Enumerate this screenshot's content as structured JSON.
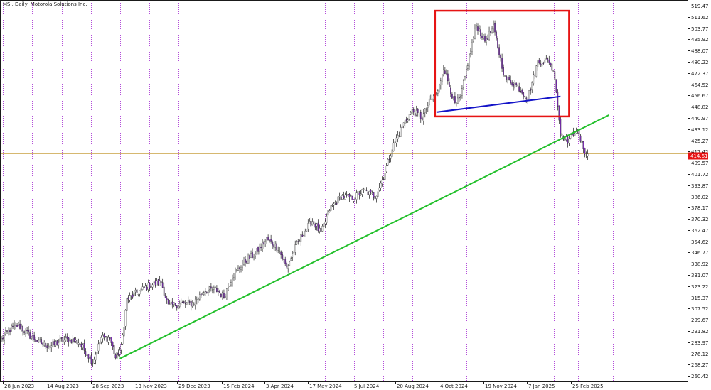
{
  "chart_title": "MSI, Daily:  Motorola Solutions Inc.",
  "colors": {
    "background": "#ffffff",
    "grid_vertical": "#b34dd9",
    "candle": "#1a1a1a",
    "bull_fill": "#ffffff",
    "bear_fill": "#7a2fb0",
    "trendline_support": "#22c02b",
    "trendline_neckline": "#1313c8",
    "highlight_box": "#e61414",
    "current_price_line": "#e8b84a",
    "current_price_tag": "#e61414",
    "bid_line": "#c8a040"
  },
  "chart_data": {
    "type": "candlestick",
    "symbol": "MSI",
    "timeframe": "Daily",
    "ylim": [
      256.5,
      523.0
    ],
    "y_ticks": [
      "519.47",
      "511.62",
      "503.77",
      "495.92",
      "488.07",
      "480.22",
      "472.37",
      "464.52",
      "456.67",
      "448.82",
      "440.97",
      "433.12",
      "425.27",
      "417.42",
      "409.57",
      "401.72",
      "393.87",
      "386.02",
      "378.17",
      "370.32",
      "362.47",
      "354.62",
      "346.77",
      "338.92",
      "331.07",
      "323.22",
      "315.37",
      "307.52",
      "299.67",
      "291.82",
      "283.97",
      "276.12",
      "268.27",
      "260.42"
    ],
    "x_labels": [
      "28 Jun 2023",
      "14 Aug 2023",
      "28 Sep 2023",
      "13 Nov 2023",
      "29 Dec 2023",
      "15 Feb 2024",
      "3 Apr 2024",
      "17 May 2024",
      "5 Jul 2024",
      "20 Aug 2024",
      "4 Oct 2024",
      "19 Nov 2024",
      "7 Jan 2025",
      "25 Feb 2025"
    ],
    "current_price": 414.61,
    "current_price_label": "414.61",
    "anchors": [
      [
        0,
        286
      ],
      [
        6,
        293
      ],
      [
        12,
        296
      ],
      [
        18,
        290
      ],
      [
        26,
        284
      ],
      [
        34,
        281
      ],
      [
        42,
        285
      ],
      [
        48,
        286
      ],
      [
        54,
        284
      ],
      [
        60,
        276
      ],
      [
        64,
        270
      ],
      [
        70,
        287
      ],
      [
        76,
        287
      ],
      [
        80,
        273
      ],
      [
        84,
        280
      ],
      [
        88,
        314
      ],
      [
        94,
        318
      ],
      [
        104,
        324
      ],
      [
        112,
        326
      ],
      [
        117,
        309
      ],
      [
        124,
        311
      ],
      [
        134,
        311
      ],
      [
        142,
        320
      ],
      [
        150,
        321
      ],
      [
        156,
        316
      ],
      [
        162,
        330
      ],
      [
        170,
        340
      ],
      [
        178,
        346
      ],
      [
        186,
        356
      ],
      [
        194,
        350
      ],
      [
        200,
        336
      ],
      [
        206,
        350
      ],
      [
        212,
        361
      ],
      [
        218,
        369
      ],
      [
        224,
        360
      ],
      [
        230,
        377
      ],
      [
        238,
        386
      ],
      [
        246,
        385
      ],
      [
        254,
        390
      ],
      [
        262,
        386
      ],
      [
        268,
        400
      ],
      [
        274,
        420
      ],
      [
        282,
        437
      ],
      [
        288,
        446
      ],
      [
        295,
        441
      ],
      [
        300,
        452
      ],
      [
        306,
        459
      ],
      [
        310,
        477
      ],
      [
        318,
        450
      ],
      [
        322,
        455
      ],
      [
        328,
        484
      ],
      [
        333,
        506
      ],
      [
        339,
        495
      ],
      [
        345,
        504
      ],
      [
        353,
        469
      ],
      [
        361,
        464
      ],
      [
        369,
        455
      ],
      [
        376,
        480
      ],
      [
        384,
        481
      ],
      [
        388,
        470
      ],
      [
        392,
        430
      ],
      [
        397,
        425
      ],
      [
        403,
        433
      ],
      [
        410,
        415
      ]
    ],
    "trendlines": [
      {
        "name": "support",
        "points": [
          [
            83,
            272.5
          ],
          [
            426,
            443
          ]
        ]
      },
      {
        "name": "neckline",
        "points": [
          [
            305,
            445
          ],
          [
            392,
            456
          ]
        ]
      }
    ],
    "highlight_box": {
      "x_range": [
        304,
        398
      ],
      "y_range": [
        442,
        516
      ]
    }
  }
}
